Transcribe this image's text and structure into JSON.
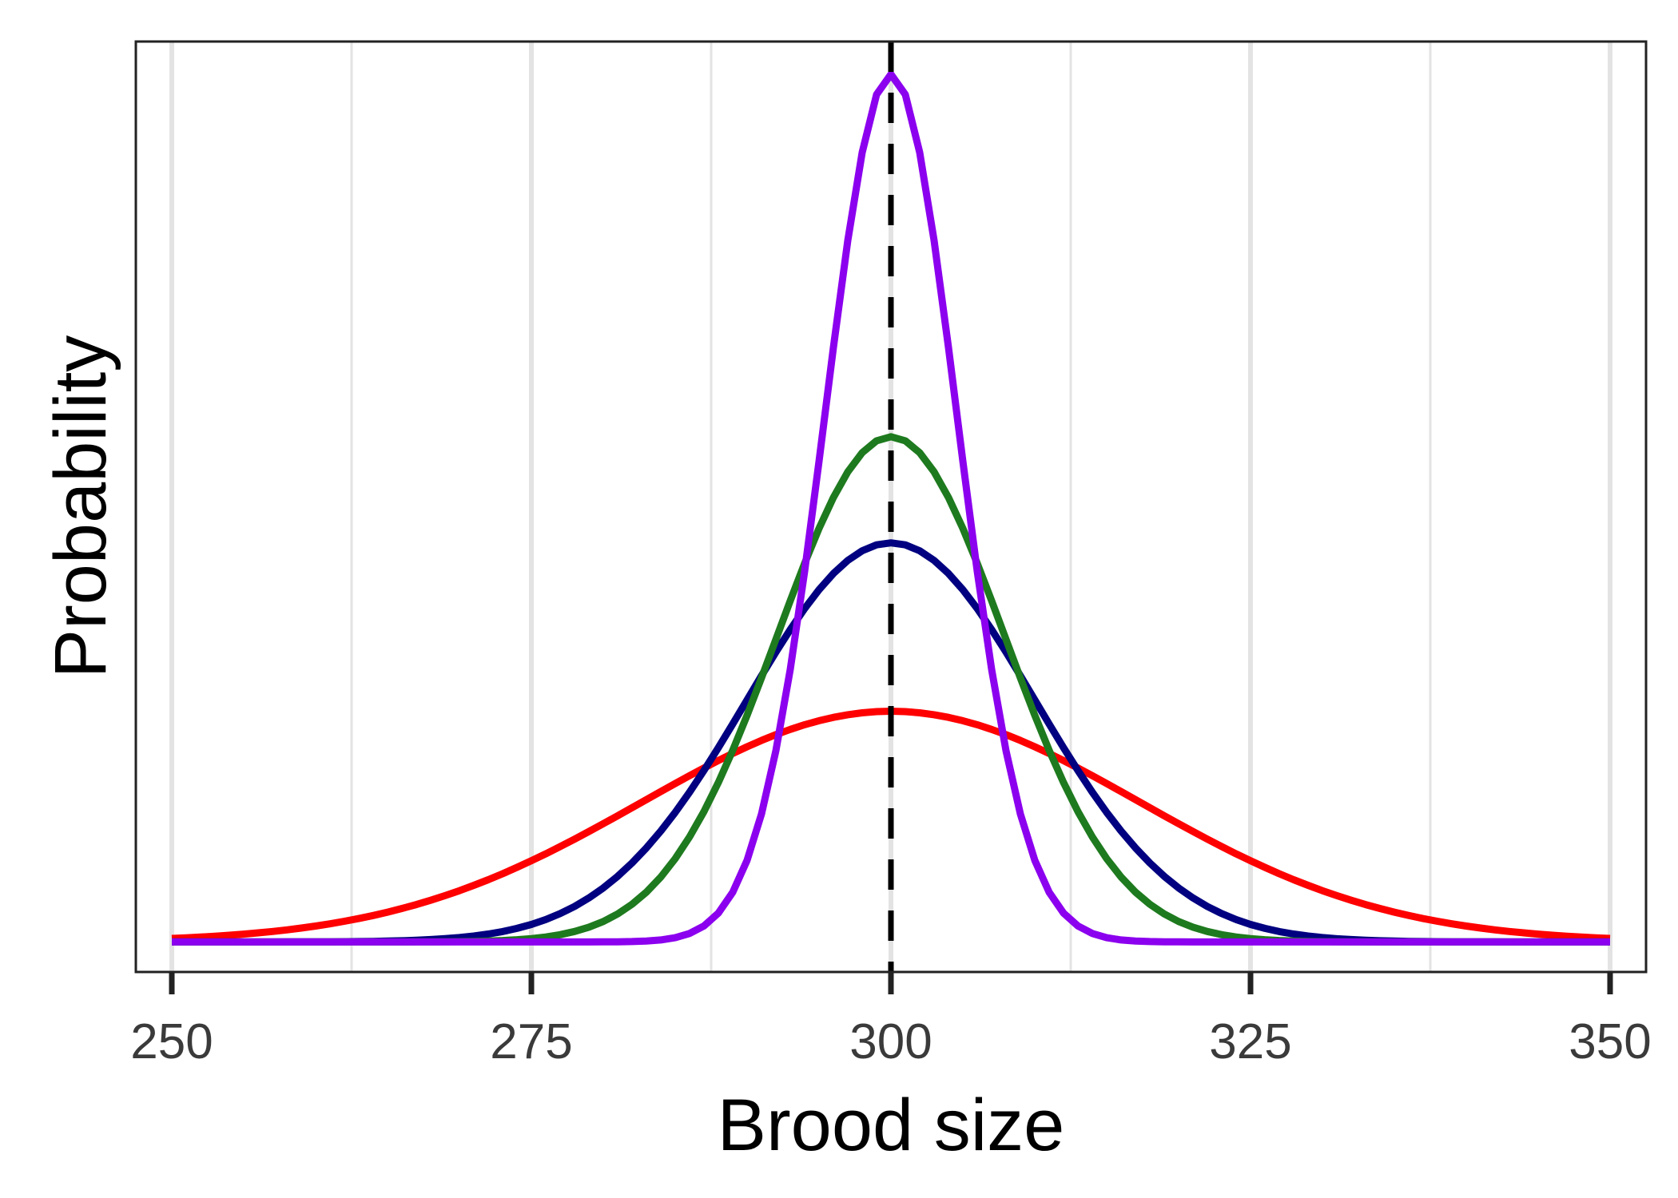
{
  "chart_data": {
    "type": "line",
    "title": "",
    "xlabel": "Brood size",
    "ylabel": "Probability",
    "xlim": [
      247.5,
      352.5
    ],
    "ylim": [
      -0.003,
      0.09
    ],
    "x_ticks": [
      250,
      275,
      300,
      325,
      350
    ],
    "x_minor_grid": [
      262.5,
      287.5,
      312.5,
      337.5
    ],
    "grid": "vertical-only",
    "y_tick_labels": false,
    "legend": "none",
    "reference_line": {
      "x": 300,
      "style": "dashed",
      "color": "#000000"
    },
    "x_range": [
      250,
      350
    ],
    "series": [
      {
        "mean": 300,
        "sd": 17.3,
        "color": "#ff0000"
      },
      {
        "mean": 300,
        "sd": 10.0,
        "color": "#000080"
      },
      {
        "mean": 300,
        "sd": 7.9,
        "color": "#1e7a1e"
      },
      {
        "mean": 300,
        "sd": 4.6,
        "color": "#8b00ee"
      }
    ]
  },
  "colors": {
    "grid": "#e3e3e3",
    "frame": "#222222",
    "tick": "#222222"
  }
}
